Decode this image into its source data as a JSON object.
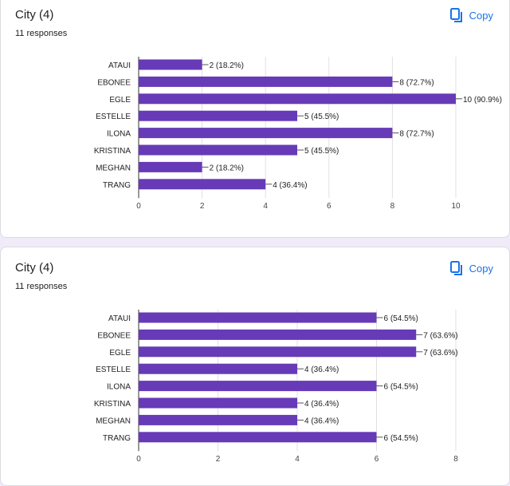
{
  "colors": {
    "bar": "#673ab7",
    "accent": "#1a73e8",
    "background": "#f0ebf8"
  },
  "cards": [
    {
      "title": "City (4)",
      "subtitle": "11 responses",
      "copy_label": "Copy",
      "copy_icon": "copy-icon"
    },
    {
      "title": "City (4)",
      "subtitle": "11 responses",
      "copy_label": "Copy",
      "copy_icon": "copy-icon"
    }
  ],
  "chart_data": [
    {
      "type": "bar",
      "orientation": "horizontal",
      "categories": [
        "ATAUI",
        "EBONEE",
        "EGLE",
        "ESTELLE",
        "ILONA",
        "KRISTINA",
        "MEGHAN",
        "TRANG"
      ],
      "values": [
        2,
        8,
        10,
        5,
        8,
        5,
        2,
        4
      ],
      "value_labels": [
        "2 (18.2%)",
        "8 (72.7%)",
        "10 (90.9%)",
        "5 (45.5%)",
        "8 (72.7%)",
        "5 (45.5%)",
        "2 (18.2%)",
        "4 (36.4%)"
      ],
      "xlim": [
        0,
        10
      ],
      "xticks": [
        0,
        2,
        4,
        6,
        8,
        10
      ],
      "grid": true
    },
    {
      "type": "bar",
      "orientation": "horizontal",
      "categories": [
        "ATAUI",
        "EBONEE",
        "EGLE",
        "ESTELLE",
        "ILONA",
        "KRISTINA",
        "MEGHAN",
        "TRANG"
      ],
      "values": [
        6,
        7,
        7,
        4,
        6,
        4,
        4,
        6
      ],
      "value_labels": [
        "6 (54.5%)",
        "7 (63.6%)",
        "7 (63.6%)",
        "4 (36.4%)",
        "6 (54.5%)",
        "4 (36.4%)",
        "4 (36.4%)",
        "6 (54.5%)"
      ],
      "xlim": [
        0,
        8
      ],
      "xticks": [
        0,
        2,
        4,
        6,
        8
      ],
      "grid": true
    }
  ]
}
